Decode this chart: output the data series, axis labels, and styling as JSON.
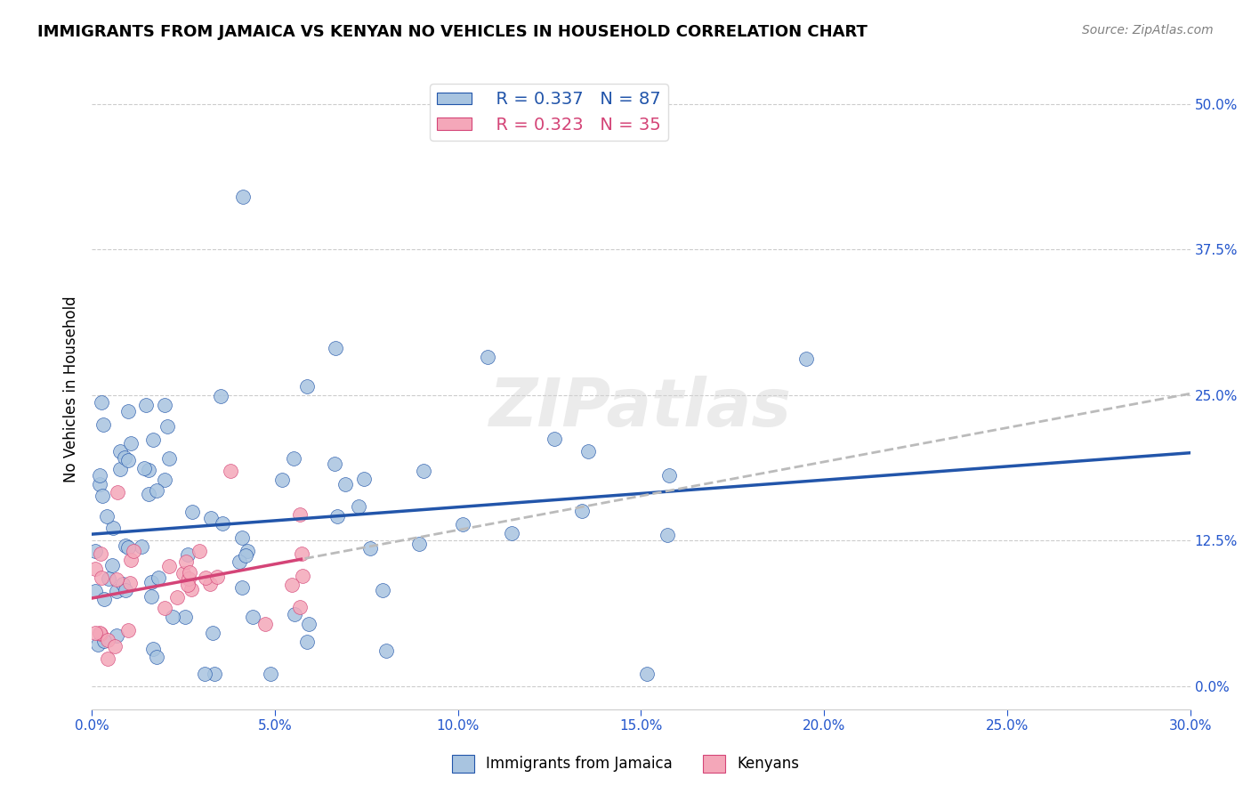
{
  "title": "IMMIGRANTS FROM JAMAICA VS KENYAN NO VEHICLES IN HOUSEHOLD CORRELATION CHART",
  "source": "Source: ZipAtlas.com",
  "ylabel": "No Vehicles in Household",
  "xlabel_ticks": [
    "0.0%",
    "5.0%",
    "10.0%",
    "15.0%",
    "20.0%",
    "25.0%",
    "30.0%"
  ],
  "xlabel_vals": [
    0.0,
    0.05,
    0.1,
    0.15,
    0.2,
    0.25,
    0.3
  ],
  "ylabel_ticks": [
    "0.0%",
    "12.5%",
    "25.0%",
    "37.5%",
    "50.0%"
  ],
  "ylabel_vals": [
    0.0,
    0.125,
    0.25,
    0.375,
    0.5
  ],
  "xlim": [
    0.0,
    0.3
  ],
  "ylim": [
    -0.02,
    0.53
  ],
  "jamaica_color": "#a8c4e0",
  "kenya_color": "#f4a7b9",
  "jamaica_line_color": "#2255aa",
  "kenya_line_color": "#d44477",
  "legend_R_jamaica": "R = 0.337",
  "legend_N_jamaica": "N = 87",
  "legend_R_kenya": "R = 0.323",
  "legend_N_kenya": "N = 35",
  "legend_label_jamaica": "Immigrants from Jamaica",
  "legend_label_kenya": "Kenyans",
  "watermark": "ZIPatlas"
}
